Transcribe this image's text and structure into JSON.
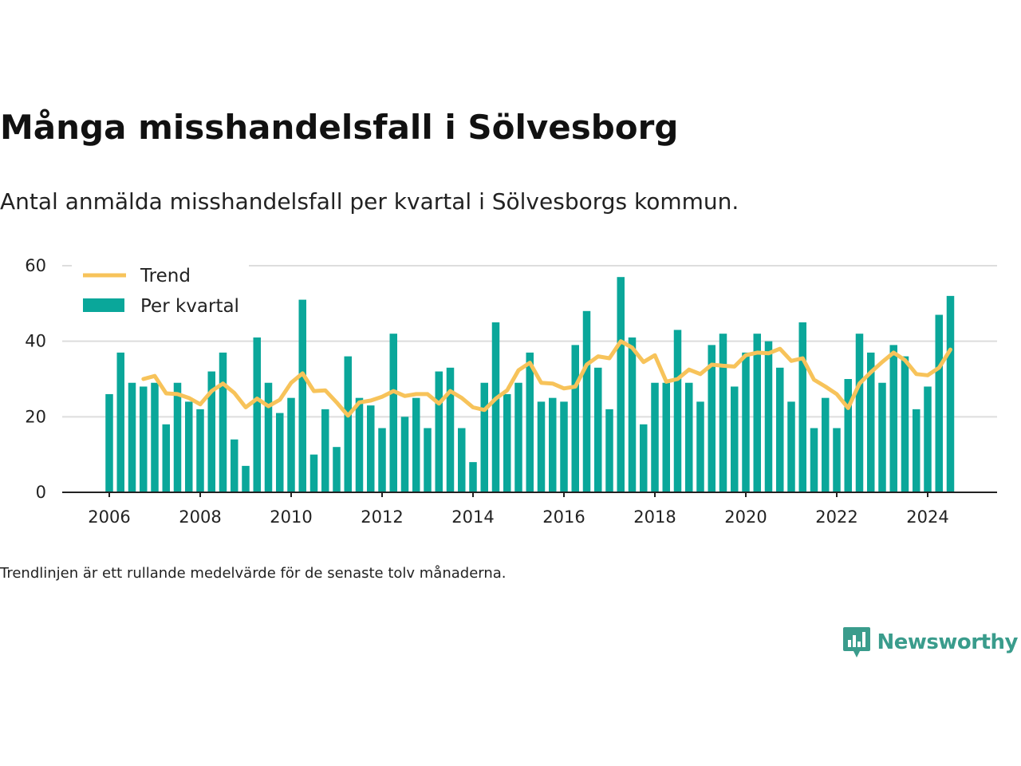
{
  "title": "Många misshandelsfall i Sölvesborg",
  "subtitle": "Antal anmälda misshandelsfall per kvartal i Sölvesborgs kommun.",
  "note": "Trendlinjen är ett rullande medelvärde för de senaste tolv månaderna.",
  "brand": "Newsworthy",
  "colors": {
    "bar": "#0aa79a",
    "trend": "#f7c35a",
    "grid": "#dddddd",
    "axis": "#222222",
    "brand": "#3a9c8c"
  },
  "chart_data": {
    "type": "bar",
    "x_unit": "quarter",
    "x_start": "2006-Q1",
    "x_ticks": [
      "2006",
      "2008",
      "2010",
      "2012",
      "2014",
      "2016",
      "2018",
      "2020",
      "2022",
      "2024"
    ],
    "y_ticks": [
      "0",
      "20",
      "40",
      "60"
    ],
    "ylim": [
      0,
      60
    ],
    "grid": true,
    "legend_position": "top-left",
    "series": [
      {
        "name": "Per kvartal",
        "kind": "bar",
        "values": [
          26,
          37,
          29,
          28,
          29,
          18,
          29,
          24,
          22,
          32,
          37,
          14,
          7,
          41,
          29,
          21,
          25,
          51,
          10,
          22,
          12,
          36,
          25,
          23,
          17,
          42,
          20,
          25,
          17,
          32,
          33,
          17,
          8,
          29,
          45,
          26,
          29,
          37,
          24,
          25,
          24,
          39,
          48,
          33,
          22,
          57,
          41,
          18,
          29,
          29,
          43,
          29,
          24,
          39,
          42,
          28,
          37,
          42,
          40,
          33,
          24,
          45,
          17,
          25,
          17,
          30,
          42,
          37,
          29,
          39,
          36,
          22,
          28,
          47,
          52
        ]
      },
      {
        "name": "Trend",
        "kind": "line",
        "values": [
          null,
          null,
          null,
          30,
          30.8,
          26.2,
          26,
          25,
          23.3,
          26.8,
          28.8,
          26.3,
          22.5,
          24.8,
          22.8,
          24.5,
          29,
          31.5,
          26.8,
          27,
          23.8,
          20.3,
          23.8,
          24.3,
          25.3,
          26.8,
          25.5,
          26,
          26,
          23.5,
          26.8,
          25,
          22.5,
          21.8,
          24.8,
          27,
          32.3,
          34.3,
          29,
          28.8,
          27.5,
          28,
          33.8,
          36,
          35.5,
          40,
          38.3,
          34.5,
          36.3,
          29.3,
          30,
          32.5,
          31.3,
          33.8,
          33.5,
          33.3,
          36.3,
          37,
          36.8,
          38,
          34.8,
          35.5,
          29.8,
          28,
          26,
          22.3,
          28.8,
          31.8,
          34.5,
          37,
          35,
          31.3,
          31,
          33,
          37.8
        ]
      }
    ]
  }
}
